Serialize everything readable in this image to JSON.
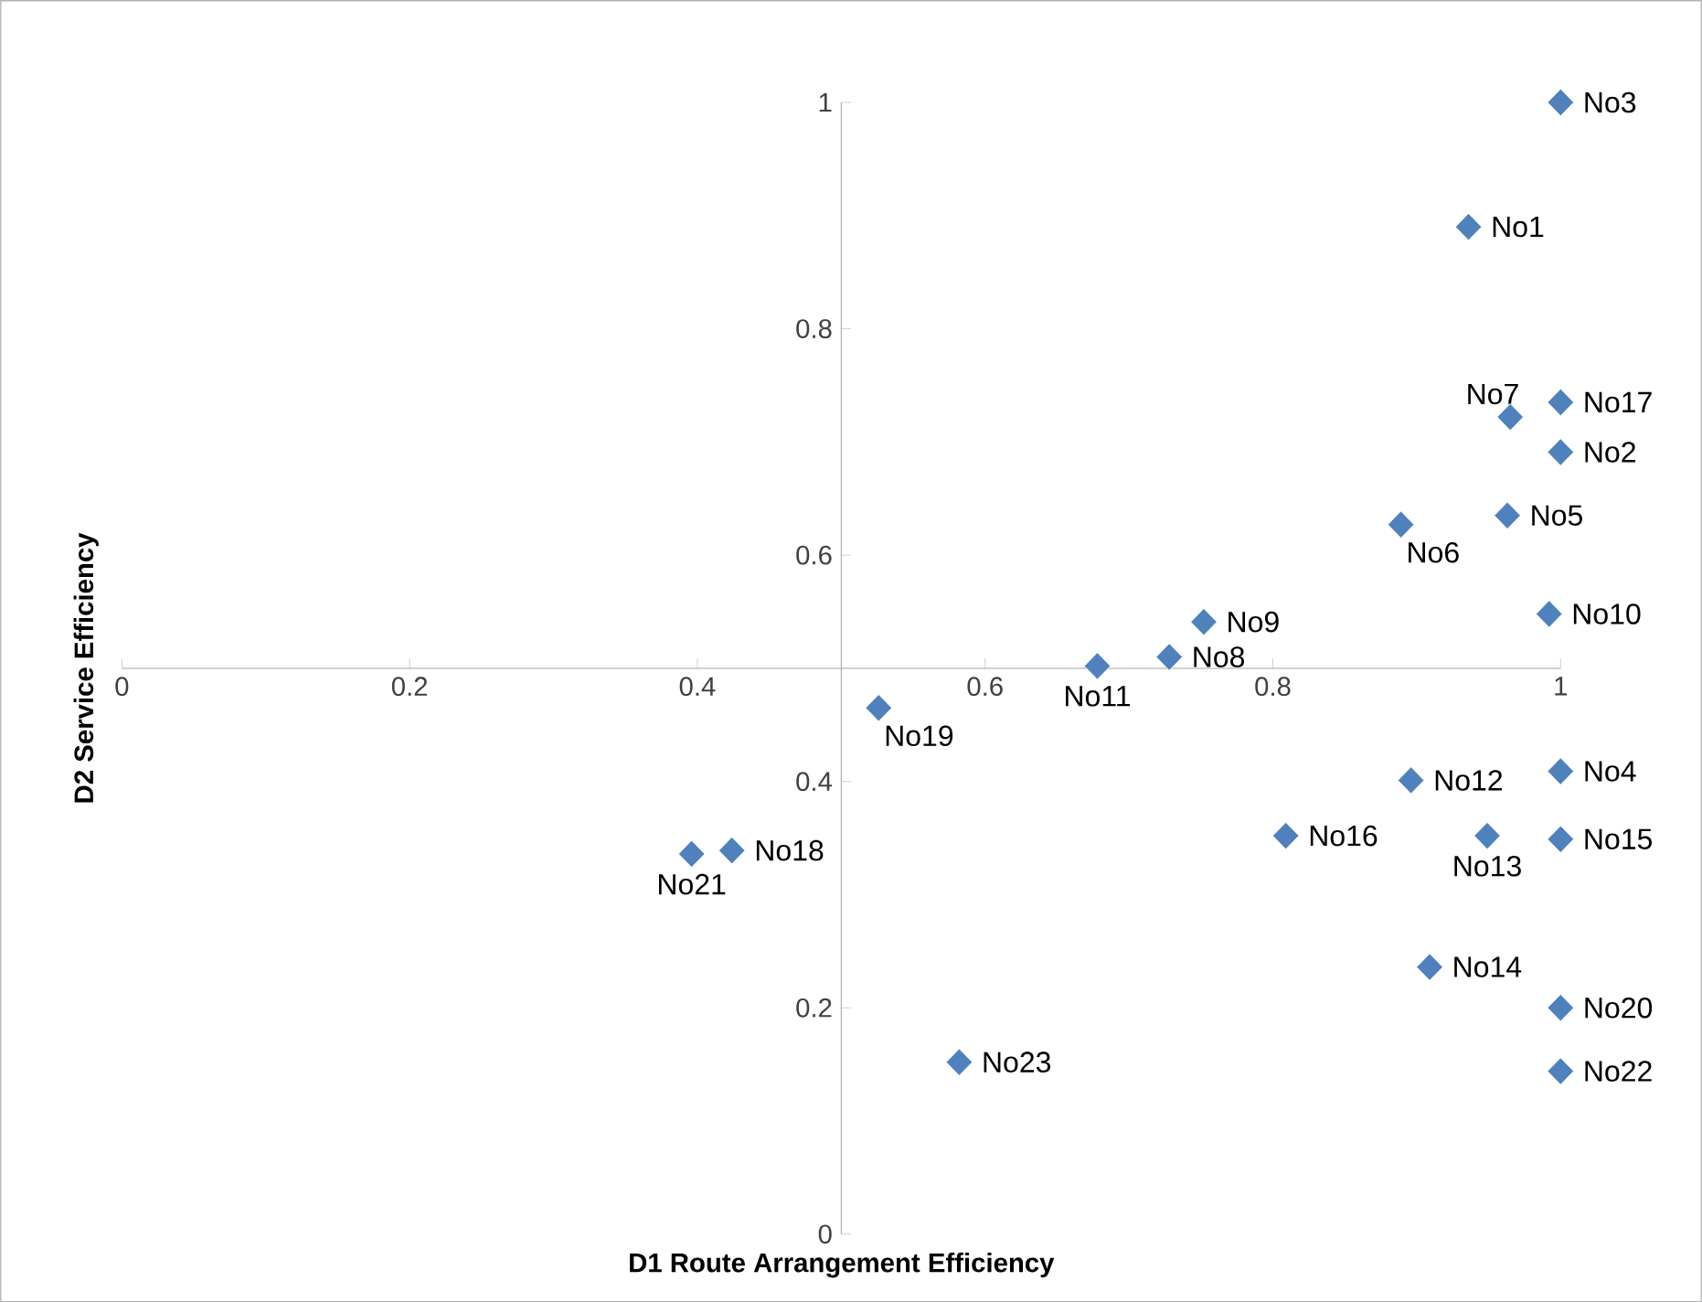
{
  "chart_data": {
    "type": "scatter",
    "xlabel": "D1 Route Arrangement Efficiency",
    "ylabel": "D2 Service Efficiency",
    "x": [
      0.936,
      1,
      1,
      1,
      0.963,
      0.889,
      0.965,
      0.728,
      0.752,
      0.992,
      0.678,
      0.896,
      0.949,
      0.909,
      1,
      0.809,
      1,
      0.424,
      0.526,
      1,
      0.396,
      1,
      0.582
    ],
    "values": [
      0.89,
      0.691,
      1,
      0.409,
      0.635,
      0.627,
      0.722,
      0.51,
      0.541,
      0.548,
      0.502,
      0.401,
      0.352,
      0.236,
      0.349,
      0.352,
      0.735,
      0.339,
      0.465,
      0.2,
      0.336,
      0.144,
      0.152
    ],
    "color": "#4f81bd",
    "marker": "diamond",
    "xlim": [
      0,
      1
    ],
    "ylim": [
      0,
      1
    ],
    "xticks": [
      0,
      0.2,
      0.4,
      0.6,
      0.8,
      1
    ],
    "yticks": [
      0,
      0.2,
      0.4,
      0.6,
      0.8,
      1
    ],
    "annotations": [
      {
        "text": "No1",
        "x": 0.936,
        "y": 0.89
      },
      {
        "text": "No2",
        "x": 1,
        "y": 0.691
      },
      {
        "text": "No3",
        "x": 1,
        "y": 1
      },
      {
        "text": "No4",
        "x": 1,
        "y": 0.409
      },
      {
        "text": "No5",
        "x": 0.963,
        "y": 0.635
      },
      {
        "text": "No6",
        "x": 0.889,
        "y": 0.627
      },
      {
        "text": "No7",
        "x": 0.965,
        "y": 0.722
      },
      {
        "text": "No8",
        "x": 0.728,
        "y": 0.51
      },
      {
        "text": "No9",
        "x": 0.752,
        "y": 0.541
      },
      {
        "text": "No10",
        "x": 0.992,
        "y": 0.548
      },
      {
        "text": "No11",
        "x": 0.678,
        "y": 0.502
      },
      {
        "text": "No12",
        "x": 0.896,
        "y": 0.401
      },
      {
        "text": "No13",
        "x": 0.949,
        "y": 0.352
      },
      {
        "text": "No14",
        "x": 0.909,
        "y": 0.236
      },
      {
        "text": "No15",
        "x": 1,
        "y": 0.349
      },
      {
        "text": "No16",
        "x": 0.809,
        "y": 0.352
      },
      {
        "text": "No17",
        "x": 1,
        "y": 0.735
      },
      {
        "text": "No18",
        "x": 0.424,
        "y": 0.339
      },
      {
        "text": "No19",
        "x": 0.526,
        "y": 0.465
      },
      {
        "text": "No20",
        "x": 1,
        "y": 0.2
      },
      {
        "text": "No21",
        "x": 0.396,
        "y": 0.336
      },
      {
        "text": "No22",
        "x": 1,
        "y": 0.144
      },
      {
        "text": "No23",
        "x": 0.582,
        "y": 0.152
      }
    ]
  }
}
